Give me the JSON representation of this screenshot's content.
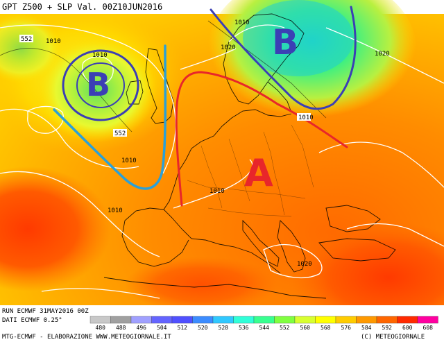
{
  "header": {
    "title": "GPT Z500 + SLP Val. 00Z10JUN2016"
  },
  "footer": {
    "run": "RUN ECMWF 31MAY2016 00Z",
    "dati": "DATI ECMWF 0.25°",
    "credits": "MTG-ECMWF - ELABORAZIONE WWW.METEOGIORNALE.IT",
    "copyright": "(C) METEOGIORNALE"
  },
  "map": {
    "pressure_systems": [
      {
        "letter": "B",
        "meaning": "low",
        "color": "#3b3fb5"
      },
      {
        "letter": "B",
        "meaning": "low",
        "color": "#3b3fb5"
      },
      {
        "letter": "A",
        "meaning": "high",
        "color": "#e8262a"
      }
    ],
    "contour_labels": [
      "552",
      "1010",
      "1010",
      "1020",
      "1010",
      "552",
      "1010",
      "1010",
      "1010",
      "1020",
      "1010",
      "1020"
    ],
    "annotation_colors": {
      "trough": "#2aa0d8",
      "ridge": "#e8262a",
      "low": "#3b3fb5"
    }
  },
  "legend": {
    "values": [
      "480",
      "488",
      "496",
      "504",
      "512",
      "520",
      "528",
      "536",
      "544",
      "552",
      "560",
      "568",
      "576",
      "584",
      "592",
      "600",
      "608"
    ],
    "colors": [
      "#c8c8c8",
      "#a0a0a0",
      "#a0a0ff",
      "#6464ff",
      "#5050ff",
      "#3c8cff",
      "#30c8ff",
      "#30ffd8",
      "#38ff90",
      "#80ff40",
      "#d8ff30",
      "#ffff00",
      "#ffcc00",
      "#ff9900",
      "#ff6600",
      "#ff2a00",
      "#ff00a0"
    ]
  }
}
